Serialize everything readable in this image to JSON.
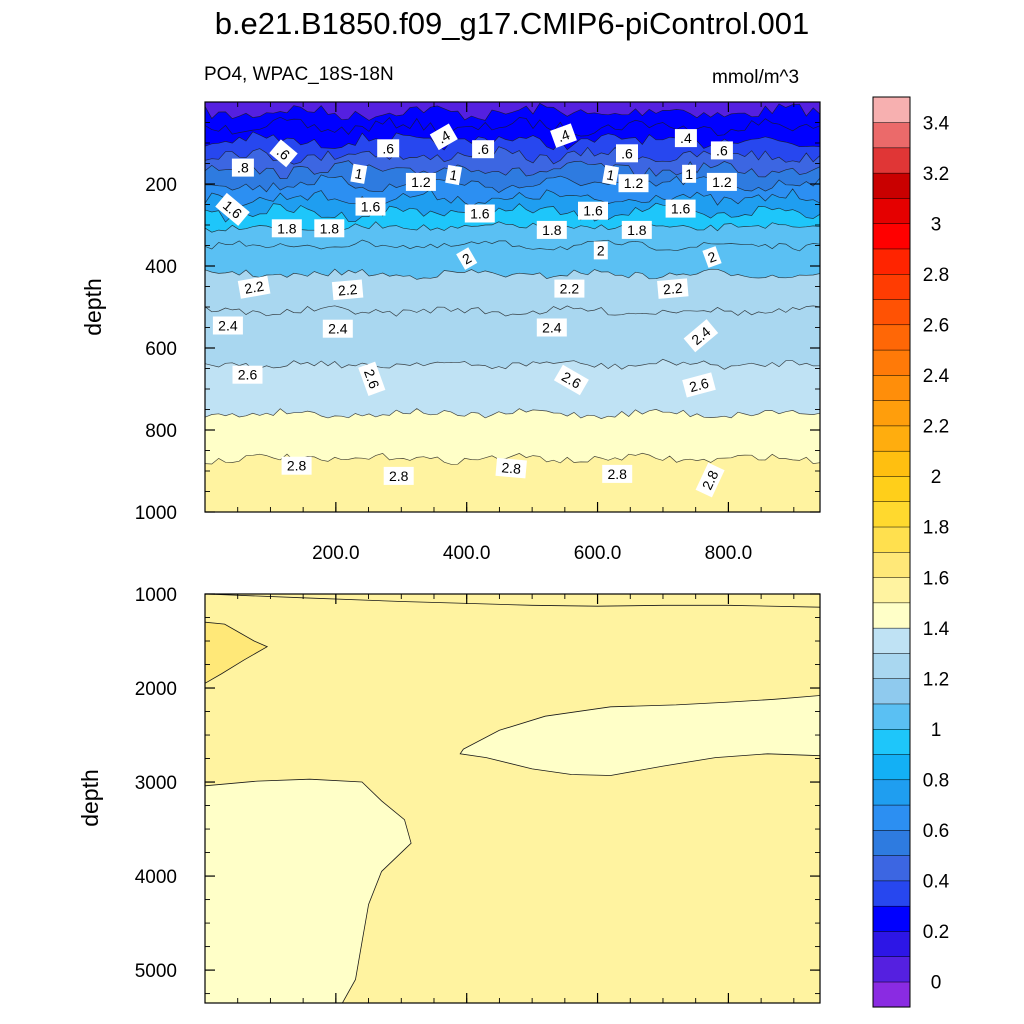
{
  "title": "b.e21.B1850.f09_g17.CMIP6-piControl.001",
  "chart_data": {
    "type": "heatmap",
    "variable_label": "PO4, WPAC_18S-18N",
    "units_label": "mmol/m^3",
    "x_range": [
      0,
      940
    ],
    "x_ticks": [
      {
        "value": 200,
        "label": "200.0"
      },
      {
        "value": 400,
        "label": "400.0"
      },
      {
        "value": 600,
        "label": "600.0"
      },
      {
        "value": 800,
        "label": "800.0"
      }
    ],
    "top_panel": {
      "ylabel": "depth",
      "ylim": [
        0,
        1000
      ],
      "y_ticks": [
        {
          "value": 200,
          "label": "200"
        },
        {
          "value": 400,
          "label": "400"
        },
        {
          "value": 600,
          "label": "600"
        },
        {
          "value": 800,
          "label": "800"
        },
        {
          "value": 1000,
          "label": "1000"
        }
      ],
      "contour_levels": [
        {
          "value": 0.2,
          "depth": 25
        },
        {
          "value": 0.4,
          "depth": 60
        },
        {
          "value": 0.6,
          "depth": 95
        },
        {
          "value": 0.8,
          "depth": 130
        },
        {
          "value": 1.0,
          "depth": 165
        },
        {
          "value": 1.2,
          "depth": 200
        },
        {
          "value": 1.4,
          "depth": 235
        },
        {
          "value": 1.6,
          "depth": 270
        },
        {
          "value": 1.8,
          "depth": 305
        },
        {
          "value": 2.0,
          "depth": 350
        },
        {
          "value": 2.2,
          "depth": 420
        },
        {
          "value": 2.4,
          "depth": 510
        },
        {
          "value": 2.6,
          "depth": 640
        },
        {
          "value": 2.8,
          "depth": 760
        },
        {
          "value": 3.0,
          "depth": 870
        }
      ],
      "contour_labels": [
        {
          "text": ".4",
          "x": 365,
          "depth": 85,
          "angle": -30
        },
        {
          "text": ".4",
          "x": 548,
          "depth": 82,
          "angle": -20
        },
        {
          "text": ".4",
          "x": 735,
          "depth": 88,
          "angle": 0
        },
        {
          "text": ".6",
          "x": 120,
          "depth": 125,
          "angle": 40
        },
        {
          "text": ".6",
          "x": 280,
          "depth": 113,
          "angle": 0
        },
        {
          "text": ".6",
          "x": 425,
          "depth": 115,
          "angle": 0
        },
        {
          "text": ".6",
          "x": 645,
          "depth": 125,
          "angle": 0
        },
        {
          "text": ".6",
          "x": 790,
          "depth": 118,
          "angle": 0
        },
        {
          "text": ".8",
          "x": 58,
          "depth": 160,
          "angle": 0
        },
        {
          "text": "1",
          "x": 235,
          "depth": 175,
          "angle": 10
        },
        {
          "text": "1",
          "x": 380,
          "depth": 178,
          "angle": 10
        },
        {
          "text": "1",
          "x": 620,
          "depth": 178,
          "angle": 10
        },
        {
          "text": "1",
          "x": 740,
          "depth": 175,
          "angle": 0
        },
        {
          "text": "1.2",
          "x": 330,
          "depth": 195,
          "angle": 0
        },
        {
          "text": "1.2",
          "x": 655,
          "depth": 198,
          "angle": 0
        },
        {
          "text": "1.2",
          "x": 790,
          "depth": 195,
          "angle": 0
        },
        {
          "text": "1.6",
          "x": 42,
          "depth": 262,
          "angle": 40
        },
        {
          "text": "1.6",
          "x": 253,
          "depth": 255,
          "angle": 0
        },
        {
          "text": "1.6",
          "x": 420,
          "depth": 272,
          "angle": 0
        },
        {
          "text": "1.6",
          "x": 593,
          "depth": 265,
          "angle": 0
        },
        {
          "text": "1.6",
          "x": 727,
          "depth": 260,
          "angle": 0
        },
        {
          "text": "1.8",
          "x": 125,
          "depth": 308,
          "angle": 0
        },
        {
          "text": "1.8",
          "x": 190,
          "depth": 308,
          "angle": 0
        },
        {
          "text": "1.8",
          "x": 530,
          "depth": 312,
          "angle": 0
        },
        {
          "text": "1.8",
          "x": 660,
          "depth": 312,
          "angle": 0
        },
        {
          "text": "2",
          "x": 400,
          "depth": 382,
          "angle": -30
        },
        {
          "text": "2",
          "x": 605,
          "depth": 362,
          "angle": 0
        },
        {
          "text": "2",
          "x": 775,
          "depth": 378,
          "angle": -20
        },
        {
          "text": "2.2",
          "x": 75,
          "depth": 452,
          "angle": -10
        },
        {
          "text": "2.2",
          "x": 218,
          "depth": 458,
          "angle": -5
        },
        {
          "text": "2.2",
          "x": 557,
          "depth": 455,
          "angle": 0
        },
        {
          "text": "2.2",
          "x": 715,
          "depth": 455,
          "angle": -5
        },
        {
          "text": "2.4",
          "x": 35,
          "depth": 545,
          "angle": 0
        },
        {
          "text": "2.4",
          "x": 203,
          "depth": 553,
          "angle": 0
        },
        {
          "text": "2.4",
          "x": 530,
          "depth": 550,
          "angle": 0
        },
        {
          "text": "2.4",
          "x": 758,
          "depth": 570,
          "angle": -40
        },
        {
          "text": "2.6",
          "x": 65,
          "depth": 665,
          "angle": 0
        },
        {
          "text": "2.6",
          "x": 255,
          "depth": 675,
          "angle": 70
        },
        {
          "text": "2.6",
          "x": 560,
          "depth": 678,
          "angle": 30
        },
        {
          "text": "2.6",
          "x": 755,
          "depth": 690,
          "angle": -15
        },
        {
          "text": "2.8",
          "x": 140,
          "depth": 887,
          "angle": 0
        },
        {
          "text": "2.8",
          "x": 296,
          "depth": 912,
          "angle": 0
        },
        {
          "text": "2.8",
          "x": 468,
          "depth": 893,
          "angle": 5
        },
        {
          "text": "2.8",
          "x": 630,
          "depth": 907,
          "angle": 0
        },
        {
          "text": "2.8",
          "x": 772,
          "depth": 922,
          "angle": -65
        }
      ]
    },
    "bottom_panel": {
      "ylabel": "depth",
      "ylim": [
        1000,
        5350
      ],
      "y_ticks": [
        {
          "value": 1000,
          "label": "1000"
        },
        {
          "value": 2000,
          "label": "2000"
        },
        {
          "value": 3000,
          "label": "3000"
        },
        {
          "value": 4000,
          "label": "4000"
        },
        {
          "value": 5000,
          "label": "5000"
        }
      ],
      "background_value": 3.0,
      "regions": [
        {
          "value": 3.2,
          "points": [
            [
              0,
              1300
            ],
            [
              30,
              1320
            ],
            [
              55,
              1420
            ],
            [
              75,
              1500
            ],
            [
              95,
              1560
            ],
            [
              60,
              1700
            ],
            [
              25,
              1850
            ],
            [
              0,
              1950
            ]
          ]
        },
        {
          "value": 2.8,
          "points": [
            [
              395,
              2650
            ],
            [
              450,
              2450
            ],
            [
              520,
              2300
            ],
            [
              620,
              2200
            ],
            [
              720,
              2180
            ],
            [
              800,
              2150
            ],
            [
              870,
              2120
            ],
            [
              940,
              2080
            ],
            [
              940,
              2720
            ],
            [
              860,
              2700
            ],
            [
              780,
              2740
            ],
            [
              700,
              2830
            ],
            [
              620,
              2930
            ],
            [
              560,
              2920
            ],
            [
              500,
              2860
            ],
            [
              430,
              2740
            ],
            [
              390,
              2700
            ]
          ]
        },
        {
          "value": 2.8,
          "points": [
            [
              0,
              3040
            ],
            [
              80,
              2990
            ],
            [
              160,
              2970
            ],
            [
              240,
              3000
            ],
            [
              270,
              3200
            ],
            [
              305,
              3400
            ],
            [
              315,
              3650
            ],
            [
              270,
              3950
            ],
            [
              250,
              4300
            ],
            [
              240,
              4700
            ],
            [
              230,
              5100
            ],
            [
              210,
              5350
            ],
            [
              0,
              5350
            ]
          ]
        }
      ],
      "contour_lines": [
        {
          "value": 3.0,
          "points": [
            [
              0,
              1000
            ],
            [
              150,
              1040
            ],
            [
              300,
              1080
            ],
            [
              400,
              1100
            ],
            [
              500,
              1120
            ],
            [
              600,
              1130
            ],
            [
              700,
              1120
            ],
            [
              800,
              1120
            ],
            [
              940,
              1140
            ]
          ]
        }
      ]
    },
    "colorbar": {
      "levels": [
        -0.1,
        0.1,
        0.3,
        0.5,
        0.7,
        0.9,
        1.1,
        1.3,
        1.5,
        1.7,
        1.9,
        2.1,
        2.3,
        2.5,
        2.7,
        2.9,
        3.1,
        3.3,
        3.5
      ],
      "colors": [
        "#8a2be2",
        "#5520e0",
        "#2d16e6",
        "#0000ff",
        "#2747ef",
        "#3c66e2",
        "#2e7be0",
        "#2c8ff2",
        "#1f9ef0",
        "#13b0f5",
        "#1ec6fa",
        "#5ac0f3",
        "#8fcaee",
        "#a9d7f0",
        "#bfe2f4",
        "#ffffc8",
        "#fff3a0",
        "#ffe878",
        "#ffe04e",
        "#ffd92e",
        "#ffcf1a",
        "#ffbf10",
        "#ffad0e",
        "#ff9e0c",
        "#ff8e0a",
        "#ff7a08",
        "#ff6706",
        "#ff5204",
        "#ff3c02",
        "#ff2400",
        "#ff0000",
        "#e50000",
        "#c90000",
        "#e03636",
        "#eb6a6a",
        "#f7b0b0"
      ],
      "labels": [
        "0",
        "0.2",
        "0.4",
        "0.6",
        "0.8",
        "1",
        "1.2",
        "1.4",
        "1.6",
        "1.8",
        "2",
        "2.2",
        "2.4",
        "2.6",
        "2.8",
        "3",
        "3.2",
        "3.4"
      ]
    }
  }
}
